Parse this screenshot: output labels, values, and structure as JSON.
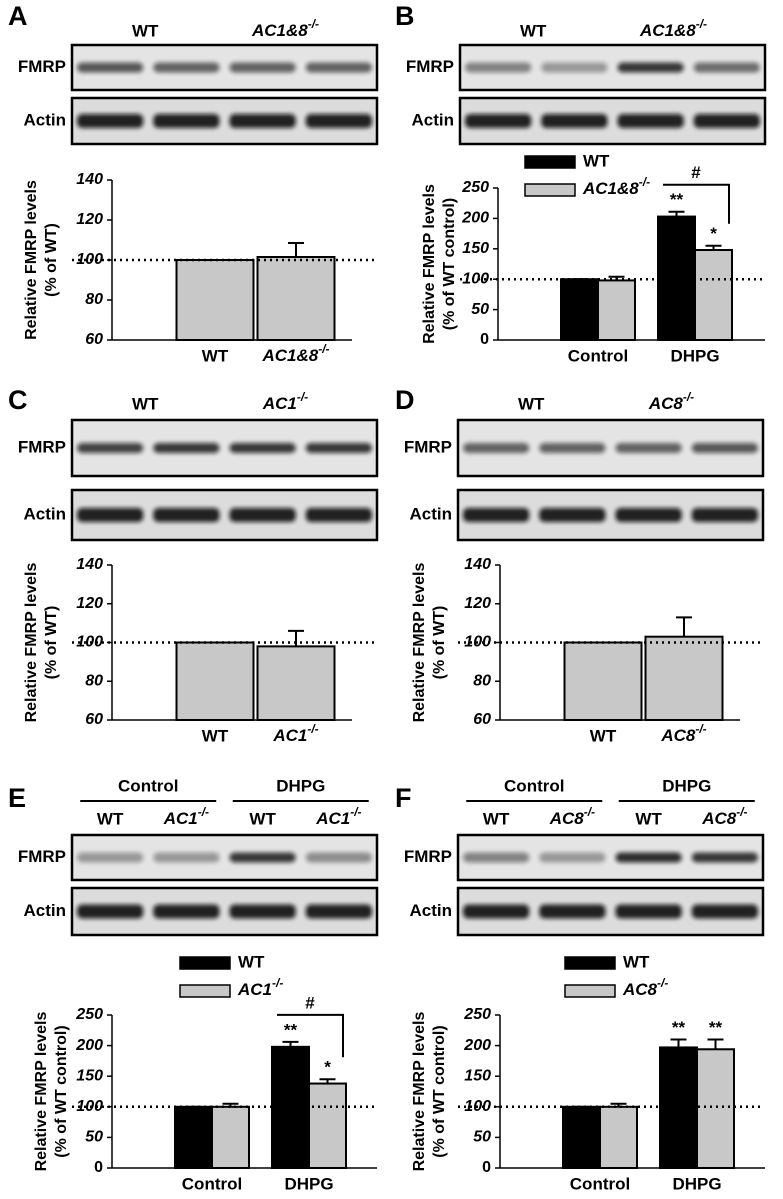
{
  "panels": [
    {
      "label": "A",
      "lanes": [
        "WT",
        {
          "base": "AC1&8",
          "sup": "-/-"
        }
      ],
      "rows": [
        "FMRP",
        "Actin"
      ]
    },
    {
      "label": "B",
      "lanes": [
        "WT",
        {
          "base": "AC1&8",
          "sup": "-/-"
        }
      ],
      "rows": [
        "FMRP",
        "Actin"
      ]
    },
    {
      "label": "C",
      "lanes": [
        "WT",
        {
          "base": "AC1",
          "sup": "-/-"
        }
      ],
      "rows": [
        "FMRP",
        "Actin"
      ]
    },
    {
      "label": "D",
      "lanes": [
        "WT",
        {
          "base": "AC8",
          "sup": "-/-"
        }
      ],
      "rows": [
        "FMRP",
        "Actin"
      ]
    },
    {
      "label": "E",
      "groups": [
        "Control",
        "DHPG"
      ],
      "lanes": [
        "WT",
        {
          "base": "AC1",
          "sup": "-/-"
        },
        "WT",
        {
          "base": "AC1",
          "sup": "-/-"
        }
      ],
      "rows": [
        "FMRP",
        "Actin"
      ]
    },
    {
      "label": "F",
      "groups": [
        "Control",
        "DHPG"
      ],
      "lanes": [
        "WT",
        {
          "base": "AC8",
          "sup": "-/-"
        },
        "WT",
        {
          "base": "AC8",
          "sup": "-/-"
        }
      ],
      "rows": [
        "FMRP",
        "Actin"
      ]
    }
  ],
  "chart_data": [
    {
      "type": "bar",
      "ylabel": [
        "Relative FMRP levels",
        "(% of WT)"
      ],
      "categories": [
        "WT",
        {
          "base": "AC1&8",
          "sup": "-/-"
        }
      ],
      "values": [
        100,
        101.5
      ],
      "errors": [
        0,
        7
      ],
      "color": "#c8c8c8",
      "ylim": [
        60,
        140
      ],
      "yticks": [
        60,
        80,
        100,
        120,
        140
      ],
      "reference_line": 100
    },
    {
      "type": "grouped_bar",
      "ylabel": [
        "Relative FMRP levels",
        "(% of WT control)"
      ],
      "categories": [
        "Control",
        "DHPG"
      ],
      "series": [
        {
          "name": "WT",
          "color": "#000000",
          "values": [
            100,
            203
          ],
          "errors": [
            0,
            8
          ],
          "significance": [
            null,
            "**"
          ]
        },
        {
          "name": {
            "base": "AC1&8",
            "sup": "-/-"
          },
          "color": "#c8c8c8",
          "values": [
            98,
            148
          ],
          "errors": [
            6,
            7
          ],
          "significance": [
            null,
            "*"
          ]
        }
      ],
      "bracket_label": "#",
      "ylim": [
        0,
        250
      ],
      "yticks": [
        0,
        50,
        100,
        150,
        200,
        250
      ],
      "reference_line": 100
    },
    {
      "type": "bar",
      "ylabel": [
        "Relative FMRP levels",
        "(% of WT)"
      ],
      "categories": [
        "WT",
        {
          "base": "AC1",
          "sup": "-/-"
        }
      ],
      "values": [
        100,
        98
      ],
      "errors": [
        0,
        8
      ],
      "color": "#c8c8c8",
      "ylim": [
        60,
        140
      ],
      "yticks": [
        60,
        80,
        100,
        120,
        140
      ],
      "reference_line": 100
    },
    {
      "type": "bar",
      "ylabel": [
        "Relative FMRP levels",
        "(% of WT)"
      ],
      "categories": [
        "WT",
        {
          "base": "AC8",
          "sup": "-/-"
        }
      ],
      "values": [
        100,
        103
      ],
      "errors": [
        0,
        10
      ],
      "color": "#c8c8c8",
      "ylim": [
        60,
        140
      ],
      "yticks": [
        60,
        80,
        100,
        120,
        140
      ],
      "reference_line": 100
    },
    {
      "type": "grouped_bar",
      "ylabel": [
        "Relative FMRP levels",
        "(% of WT control)"
      ],
      "categories": [
        "Control",
        "DHPG"
      ],
      "series": [
        {
          "name": "WT",
          "color": "#000000",
          "values": [
            100,
            198
          ],
          "errors": [
            0,
            8
          ],
          "significance": [
            null,
            "**"
          ]
        },
        {
          "name": {
            "base": "AC1",
            "sup": "-/-"
          },
          "color": "#c8c8c8",
          "values": [
            100,
            138
          ],
          "errors": [
            5,
            7
          ],
          "significance": [
            null,
            "*"
          ]
        }
      ],
      "bracket_label": "#",
      "ylim": [
        0,
        250
      ],
      "yticks": [
        0,
        50,
        100,
        150,
        200,
        250
      ],
      "reference_line": 100
    },
    {
      "type": "grouped_bar",
      "ylabel": [
        "Relative FMRP levels",
        "(% of WT control)"
      ],
      "categories": [
        "Control",
        "DHPG"
      ],
      "series": [
        {
          "name": "WT",
          "color": "#000000",
          "values": [
            100,
            197
          ],
          "errors": [
            0,
            13
          ],
          "significance": [
            null,
            "**"
          ]
        },
        {
          "name": {
            "base": "AC8",
            "sup": "-/-"
          },
          "color": "#c8c8c8",
          "values": [
            100,
            194
          ],
          "errors": [
            5,
            16
          ],
          "significance": [
            null,
            "**"
          ]
        }
      ],
      "ylim": [
        0,
        250
      ],
      "yticks": [
        0,
        50,
        100,
        150,
        200,
        250
      ],
      "reference_line": 100
    }
  ]
}
